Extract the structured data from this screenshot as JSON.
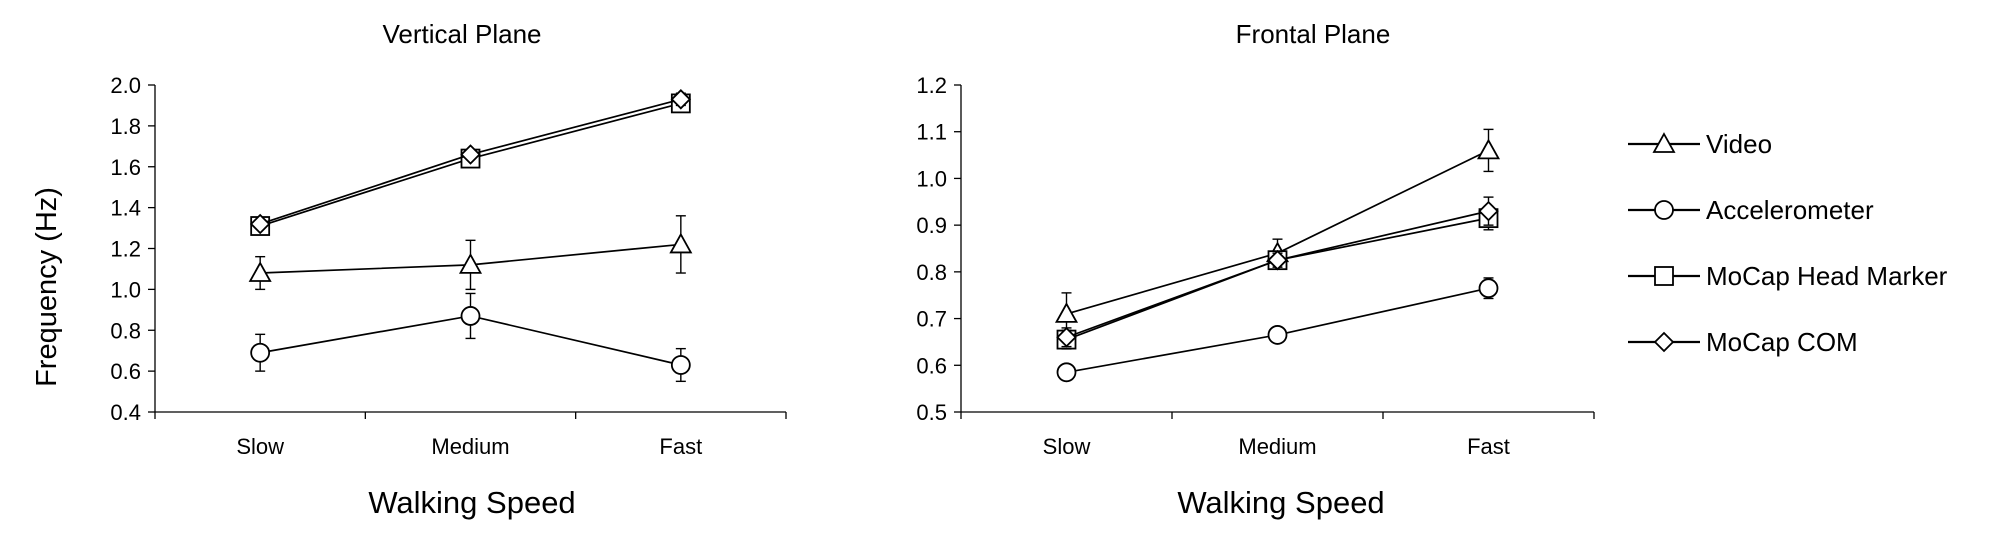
{
  "figure": {
    "ylabel": "Frequency (Hz)"
  },
  "legend": {
    "placement": "right",
    "entries": [
      {
        "name": "Video",
        "marker": "triangle"
      },
      {
        "name": "Accelerometer",
        "marker": "circle"
      },
      {
        "name": "MoCap Head Marker",
        "marker": "square"
      },
      {
        "name": "MoCap COM",
        "marker": "diamond"
      }
    ]
  },
  "chart_data": [
    {
      "type": "line",
      "title": "Vertical Plane",
      "xlabel": "Walking Speed",
      "ylabel": "Frequency (Hz)",
      "categories": [
        "Slow",
        "Medium",
        "Fast"
      ],
      "ylim": [
        0.4,
        2.0
      ],
      "yticks": [
        "0.4",
        "0.6",
        "0.8",
        "1.0",
        "1.2",
        "1.4",
        "1.6",
        "1.8",
        "2.0"
      ],
      "grid": false,
      "series": [
        {
          "name": "Video",
          "marker": "triangle",
          "values": [
            1.08,
            1.12,
            1.22
          ],
          "error": [
            0.08,
            0.12,
            0.14
          ]
        },
        {
          "name": "Accelerometer",
          "marker": "circle",
          "values": [
            0.69,
            0.87,
            0.63
          ],
          "error": [
            0.09,
            0.11,
            0.08
          ]
        },
        {
          "name": "MoCap Head Marker",
          "marker": "square",
          "values": [
            1.31,
            1.64,
            1.91
          ],
          "error": [
            0.02,
            0.02,
            0.03
          ]
        },
        {
          "name": "MoCap COM",
          "marker": "diamond",
          "values": [
            1.32,
            1.66,
            1.93
          ],
          "error": [
            0.02,
            0.02,
            0.03
          ]
        }
      ]
    },
    {
      "type": "line",
      "title": "Frontal Plane",
      "xlabel": "Walking Speed",
      "ylabel": "",
      "categories": [
        "Slow",
        "Medium",
        "Fast"
      ],
      "ylim": [
        0.5,
        1.2
      ],
      "yticks": [
        "0.5",
        "0.6",
        "0.7",
        "0.8",
        "0.9",
        "1.0",
        "1.1",
        "1.2"
      ],
      "grid": false,
      "series": [
        {
          "name": "Video",
          "marker": "triangle",
          "values": [
            0.71,
            0.84,
            1.06
          ],
          "error": [
            0.045,
            0.03,
            0.045
          ]
        },
        {
          "name": "Accelerometer",
          "marker": "circle",
          "values": [
            0.585,
            0.665,
            0.765
          ],
          "error": [
            0.008,
            0.008,
            0.022
          ]
        },
        {
          "name": "MoCap Head Marker",
          "marker": "square",
          "values": [
            0.655,
            0.825,
            0.915
          ],
          "error": [
            0.02,
            0.015,
            0.025
          ]
        },
        {
          "name": "MoCap COM",
          "marker": "diamond",
          "values": [
            0.66,
            0.825,
            0.93
          ],
          "error": [
            0.02,
            0.015,
            0.03
          ]
        }
      ]
    }
  ]
}
